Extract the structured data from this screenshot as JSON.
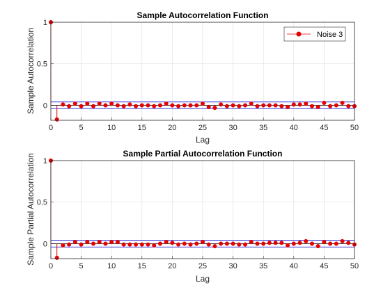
{
  "chart_data": [
    {
      "type": "stem",
      "title": "Sample Autocorrelation Function",
      "xlabel": "Lag",
      "ylabel": "Sample Autocorrelation",
      "xlim": [
        0,
        50
      ],
      "ylim": [
        -0.18,
        1
      ],
      "xticks": [
        "0",
        "5",
        "10",
        "15",
        "20",
        "25",
        "30",
        "35",
        "40",
        "45",
        "50"
      ],
      "yticks": [
        "0",
        "0.5",
        "1"
      ],
      "grid": true,
      "legend": {
        "position": "top-right",
        "entries": [
          "Noise 3"
        ]
      },
      "confidence_bound": 0.04,
      "series": [
        {
          "name": "Noise 3",
          "color": "#e60000",
          "x": [
            0,
            1,
            2,
            3,
            4,
            5,
            6,
            7,
            8,
            9,
            10,
            11,
            12,
            13,
            14,
            15,
            16,
            17,
            18,
            19,
            20,
            21,
            22,
            23,
            24,
            25,
            26,
            27,
            28,
            29,
            30,
            31,
            32,
            33,
            34,
            35,
            36,
            37,
            38,
            39,
            40,
            41,
            42,
            43,
            44,
            45,
            46,
            47,
            48,
            49,
            50
          ],
          "values": [
            1,
            -0.17,
            0.01,
            -0.01,
            0.02,
            -0.01,
            0.02,
            -0.01,
            0.02,
            0.0,
            0.02,
            0.0,
            -0.01,
            0.01,
            -0.01,
            0.0,
            0.0,
            -0.01,
            0.0,
            0.02,
            0.0,
            -0.01,
            0.0,
            0.0,
            0.0,
            0.02,
            -0.02,
            -0.03,
            0.01,
            -0.01,
            0.0,
            -0.01,
            0.0,
            0.02,
            -0.01,
            0.0,
            0.0,
            0.0,
            -0.01,
            -0.02,
            0.01,
            0.01,
            0.02,
            -0.01,
            -0.02,
            0.03,
            -0.01,
            0.0,
            0.03,
            -0.01,
            -0.01
          ]
        }
      ]
    },
    {
      "type": "stem",
      "title": "Sample Partial Autocorrelation Function",
      "xlabel": "Lag",
      "ylabel": "Sample Partial Autocorrelation",
      "xlim": [
        0,
        50
      ],
      "ylim": [
        -0.18,
        1
      ],
      "xticks": [
        "0",
        "5",
        "10",
        "15",
        "20",
        "25",
        "30",
        "35",
        "40",
        "45",
        "50"
      ],
      "yticks": [
        "0",
        "0.5",
        "1"
      ],
      "grid": true,
      "confidence_bound": 0.04,
      "series": [
        {
          "color": "#e60000",
          "x": [
            0,
            1,
            2,
            3,
            4,
            5,
            6,
            7,
            8,
            9,
            10,
            11,
            12,
            13,
            14,
            15,
            16,
            17,
            18,
            19,
            20,
            21,
            22,
            23,
            24,
            25,
            26,
            27,
            28,
            29,
            30,
            31,
            32,
            33,
            34,
            35,
            36,
            37,
            38,
            39,
            40,
            41,
            42,
            43,
            44,
            45,
            46,
            47,
            48,
            49,
            50
          ],
          "values": [
            1,
            -0.17,
            -0.02,
            -0.01,
            0.02,
            -0.01,
            0.02,
            0.0,
            0.02,
            0.0,
            0.02,
            0.02,
            -0.01,
            -0.01,
            -0.01,
            -0.01,
            -0.01,
            -0.02,
            0.0,
            0.02,
            0.01,
            -0.01,
            0.0,
            -0.01,
            0.0,
            0.02,
            -0.01,
            -0.03,
            0.0,
            0.0,
            0.0,
            -0.01,
            -0.01,
            0.02,
            0.0,
            0.0,
            0.01,
            0.01,
            0.01,
            -0.02,
            0.0,
            0.01,
            0.03,
            0.0,
            -0.03,
            0.02,
            0.0,
            0.0,
            0.03,
            0.01,
            -0.01
          ]
        }
      ]
    }
  ]
}
